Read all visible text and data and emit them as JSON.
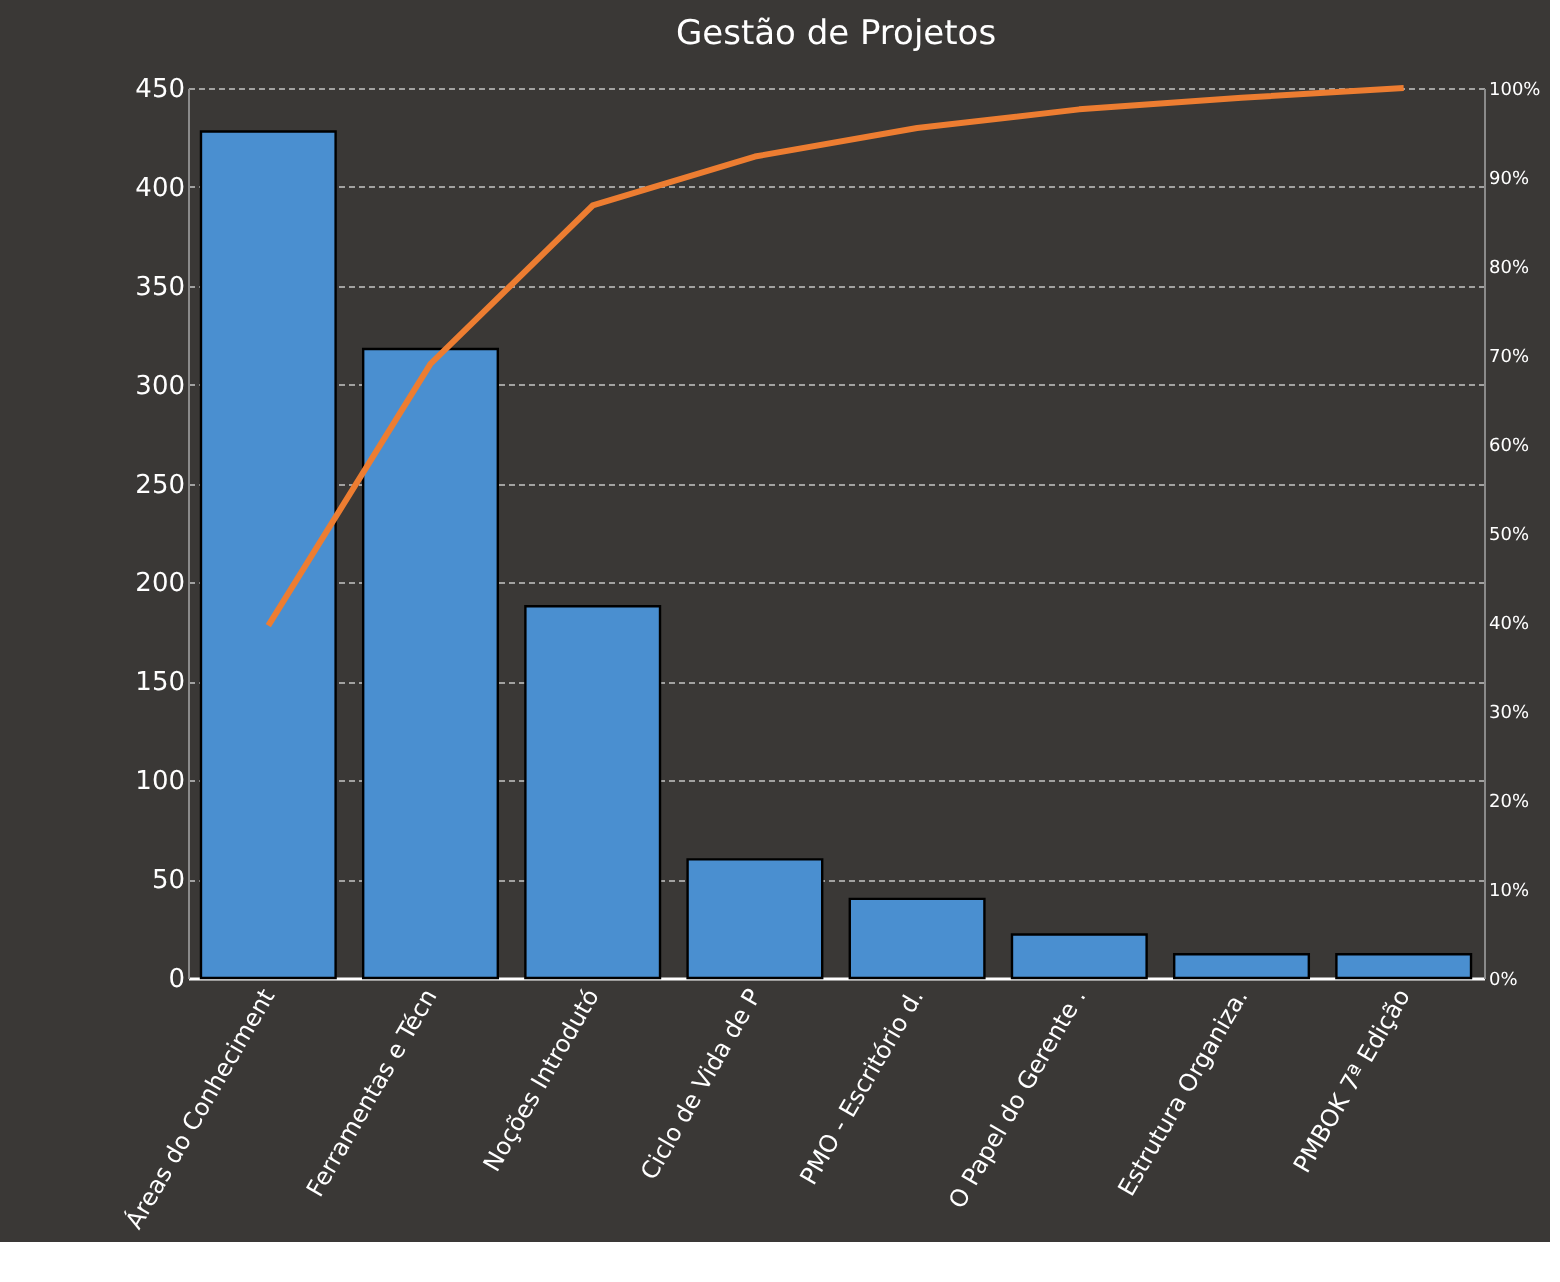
{
  "chart_data": {
    "type": "bar",
    "title": "Gestão de Projetos",
    "categories": [
      "Áreas do Conheciment",
      "Ferramentas e Técn",
      "Noções Introdutó",
      "Ciclo de Vida de P",
      "PMO - Escritório d.",
      "O Papel do Gerente .",
      "Estrutura Organiza.",
      "PMBOK 7ª Edição"
    ],
    "series": [
      {
        "color": "#4a8fd0",
        "values": [
          428,
          318,
          188,
          60,
          40,
          22,
          12,
          12
        ]
      },
      {
        "type": "line",
        "axis": "y2",
        "color": "#ed7d31",
        "values": [
          39.6,
          69.0,
          86.8,
          92.3,
          95.5,
          97.6,
          98.9,
          100
        ]
      }
    ],
    "ylim": [
      0,
      450
    ],
    "yticks": [
      0,
      50,
      100,
      150,
      200,
      250,
      300,
      350,
      400,
      450
    ],
    "y2lim": [
      0,
      100
    ],
    "y2ticks": [
      {
        "value": 0,
        "label": "0%"
      },
      {
        "value": 10,
        "label": "10%"
      },
      {
        "value": 20,
        "label": "20%"
      },
      {
        "value": 30,
        "label": "30%"
      },
      {
        "value": 40,
        "label": "40%"
      },
      {
        "value": 50,
        "label": "50%"
      },
      {
        "value": 60,
        "label": "60%"
      },
      {
        "value": 70,
        "label": "70%"
      },
      {
        "value": 80,
        "label": "80%"
      },
      {
        "value": 90,
        "label": "90%"
      },
      {
        "value": 100,
        "label": "100%"
      }
    ],
    "grid": "y",
    "marker": "none",
    "line_style": "solid"
  }
}
